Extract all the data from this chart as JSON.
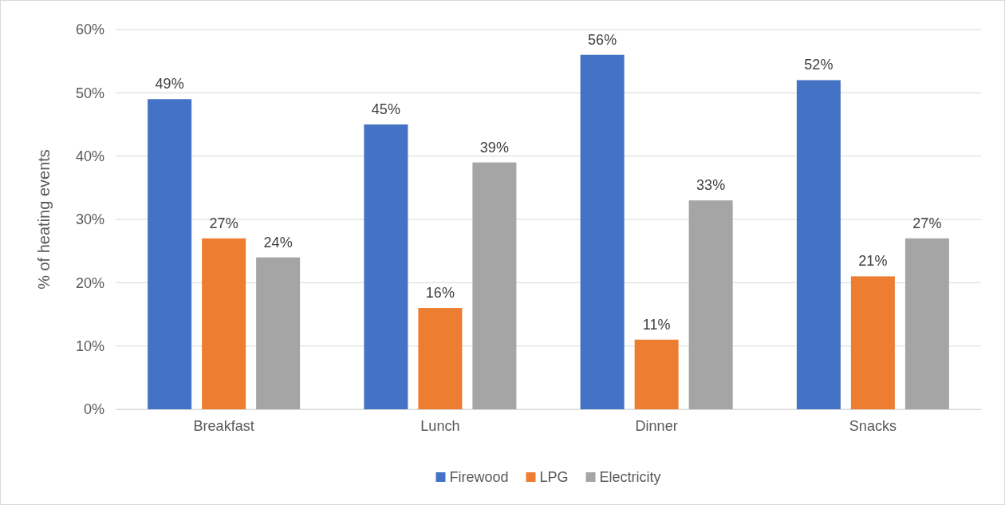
{
  "chart_data": {
    "type": "bar",
    "ylabel": "% of heating events",
    "categories": [
      "Breakfast",
      "Lunch",
      "Dinner",
      "Snacks"
    ],
    "series": [
      {
        "name": "Firewood",
        "color": "#4472c4",
        "values": [
          49,
          45,
          56,
          52
        ],
        "value_labels": [
          "49%",
          "45%",
          "56%",
          "52%"
        ]
      },
      {
        "name": "LPG",
        "color": "#ed7d31",
        "values": [
          27,
          16,
          11,
          21
        ],
        "value_labels": [
          "27%",
          "16%",
          "11%",
          "21%"
        ]
      },
      {
        "name": "Electricity",
        "color": "#a5a5a5",
        "values": [
          24,
          39,
          33,
          27
        ],
        "value_labels": [
          "24%",
          "39%",
          "33%",
          "27%"
        ]
      }
    ],
    "ylim": [
      0,
      60
    ],
    "yticks": [
      {
        "value": 0,
        "label": "0%"
      },
      {
        "value": 10,
        "label": "10%"
      },
      {
        "value": 20,
        "label": "20%"
      },
      {
        "value": 30,
        "label": "30%"
      },
      {
        "value": 40,
        "label": "40%"
      },
      {
        "value": 50,
        "label": "50%"
      },
      {
        "value": 60,
        "label": "60%"
      }
    ],
    "grid": "y",
    "legend": "bottom"
  }
}
